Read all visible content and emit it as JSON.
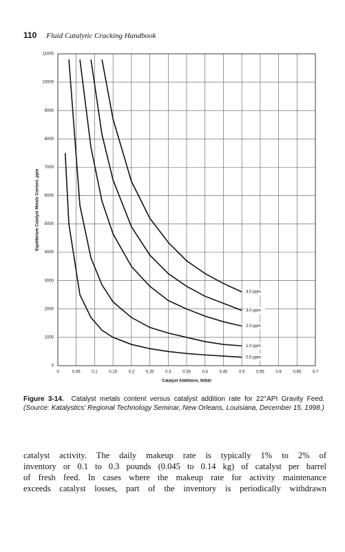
{
  "header": {
    "page_number": "110",
    "book_title": "Fluid Catalytic Cracking Handbook"
  },
  "chart_data": {
    "type": "line",
    "x_label": "Catalyst Additions, lb/bbl",
    "y_label": "Equilibrium Catalyst Metals Content, ppm",
    "x": [
      0.02,
      0.03,
      0.06,
      0.09,
      0.12,
      0.15,
      0.2,
      0.25,
      0.3,
      0.35,
      0.4,
      0.45,
      0.5
    ],
    "series": [
      {
        "name": "4.0 ppm",
        "color": "#111111",
        "values": [
          null,
          null,
          null,
          null,
          10800,
          8700,
          6500,
          5200,
          4350,
          3700,
          3250,
          2900,
          2600
        ]
      },
      {
        "name": "3.0 ppm",
        "color": "#111111",
        "values": [
          null,
          null,
          null,
          10800,
          8150,
          6550,
          4900,
          3900,
          3250,
          2800,
          2450,
          2200,
          1950
        ]
      },
      {
        "name": "2.0 ppm",
        "color": "#111111",
        "values": [
          null,
          null,
          10800,
          7700,
          5800,
          4650,
          3500,
          2800,
          2300,
          2000,
          1750,
          1550,
          1400
        ]
      },
      {
        "name": "1.0 ppm",
        "color": "#111111",
        "values": [
          null,
          10800,
          5650,
          3800,
          2850,
          2250,
          1700,
          1350,
          1150,
          1000,
          850,
          750,
          700
        ]
      },
      {
        "name": "0.5 ppm",
        "color": "#111111",
        "values": [
          7500,
          5000,
          2500,
          1700,
          1250,
          1000,
          750,
          600,
          500,
          430,
          380,
          340,
          300
        ]
      }
    ],
    "xlim": [
      0,
      0.7
    ],
    "xticks": [
      0,
      0.05,
      0.1,
      0.15,
      0.2,
      0.25,
      0.3,
      0.35,
      0.4,
      0.45,
      0.5,
      0.55,
      0.6,
      0.65,
      0.7
    ],
    "ylim": [
      0,
      11000
    ],
    "yticks": [
      0,
      1000,
      2000,
      3000,
      4000,
      5000,
      6000,
      7000,
      8000,
      9000,
      10000,
      11000
    ],
    "grid": true
  },
  "caption": {
    "label": "Figure 3-14.",
    "text": "Catalyst metals content versus catalyst addition rate for 22°API Gravity Feed.",
    "source": "(Source: Katalystics' Regional Technology Seminar, New Orleans, Louisiana, December 15, 1998.)"
  },
  "body": [
    "catalyst activity. The daily makeup rate is typically 1% to 2% of",
    "inventory or 0.1 to 0.3 pounds (0.045 to 0.14 kg) of catalyst per barrel",
    "of fresh feed. In cases where the makeup rate for activity maintenance",
    "exceeds catalyst losses, part of the inventory is periodically withdrawn"
  ]
}
